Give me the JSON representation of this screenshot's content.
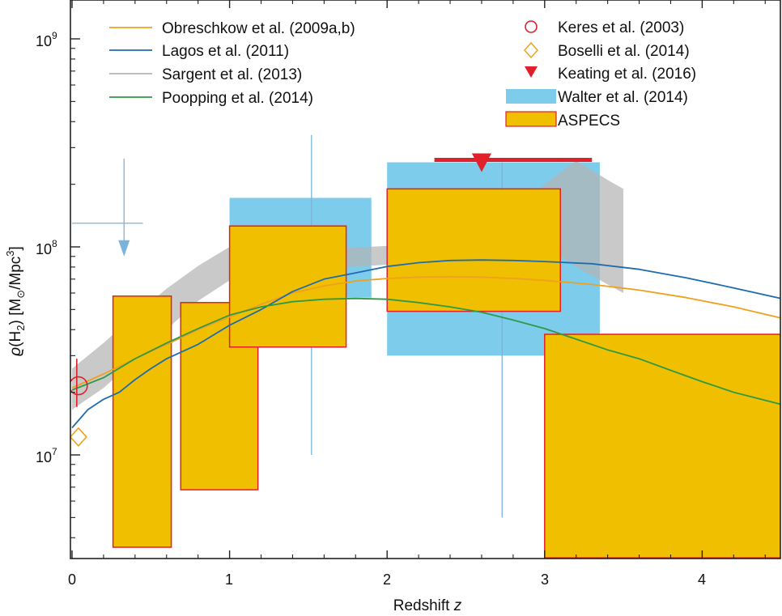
{
  "chart_data": {
    "type": "line",
    "title": "",
    "xlabel": "Redshift z",
    "xlabel_main": "Redshift ",
    "xlabel_var": "z",
    "ylabel": "ϱ(H₂) [M☉/Mpc³]",
    "ylabel_rho": "ϱ",
    "ylabel_open": "(H",
    "ylabel_sub": "2",
    "ylabel_mid": ") [M",
    "ylabel_sun": "⊙",
    "ylabel_unit": "/Mpc",
    "ylabel_exp": "3",
    "ylabel_close": "]",
    "xlim": [
      0,
      4.5
    ],
    "ylim": [
      3200000,
      1600000000
    ],
    "yscale": "log",
    "x_ticks": [
      {
        "value": 0,
        "label": "0"
      },
      {
        "value": 1,
        "label": "1"
      },
      {
        "value": 2,
        "label": "2"
      },
      {
        "value": 3,
        "label": "3"
      },
      {
        "value": 4,
        "label": "4"
      }
    ],
    "y_ticks": [
      {
        "value": 10000000,
        "base": "10",
        "exp": "7"
      },
      {
        "value": 100000000,
        "base": "10",
        "exp": "8"
      },
      {
        "value": 1000000000,
        "base": "10",
        "exp": "9"
      }
    ],
    "legend": {
      "obreschkow": "Obreschkow et al. (2009a,b)",
      "lagos": "Lagos et al. (2011)",
      "sargent": "Sargent et al. (2013)",
      "popping": "Poopping et al. (2014)",
      "keres": "Keres et al. (2003)",
      "boselli": "Boselli et al. (2014)",
      "keating": "Keating et al. (2016)",
      "walter": "Walter et al. (2014)",
      "aspecs": "ASPECS"
    },
    "series": [
      {
        "name": "Obreschkow et al. (2009a,b)",
        "color": "#F0A01E",
        "x": [
          0,
          0.2,
          0.4,
          0.6,
          0.8,
          1.0,
          1.2,
          1.4,
          1.6,
          1.8,
          2.0,
          2.2,
          2.4,
          2.6,
          2.8,
          3.0,
          3.3,
          3.6,
          3.9,
          4.2,
          4.5
        ],
        "y": [
          21000000,
          24500000,
          29000000,
          34000000,
          40000000,
          46000000,
          53000000,
          60000000,
          65000000,
          68500000,
          70500000,
          71500000,
          71800000,
          71500000,
          70500000,
          69000000,
          66000000,
          62000000,
          57000000,
          51500000,
          45500000
        ]
      },
      {
        "name": "Lagos et al. (2011)",
        "color": "#1F6BB0",
        "x": [
          0,
          0.1,
          0.2,
          0.3,
          0.4,
          0.5,
          0.6,
          0.8,
          1.0,
          1.2,
          1.4,
          1.6,
          1.8,
          2.0,
          2.2,
          2.4,
          2.6,
          2.8,
          3.0,
          3.3,
          3.6,
          3.9,
          4.2,
          4.5
        ],
        "y": [
          13500000,
          16500000,
          18500000,
          20000000,
          23000000,
          26000000,
          29000000,
          34000000,
          42000000,
          50000000,
          61000000,
          70000000,
          75000000,
          80500000,
          84000000,
          86000000,
          86500000,
          86000000,
          85000000,
          83000000,
          78000000,
          71000000,
          63500000,
          56500000
        ]
      },
      {
        "name": "Poopping et al. (2014)",
        "color": "#2E9A46",
        "x": [
          0,
          0.2,
          0.4,
          0.6,
          0.8,
          1.0,
          1.2,
          1.4,
          1.6,
          1.8,
          2.0,
          2.2,
          2.4,
          2.6,
          2.8,
          3.0,
          3.2,
          3.4,
          3.6,
          3.8,
          4.0,
          4.2,
          4.5
        ],
        "y": [
          20500000,
          23500000,
          29000000,
          34500000,
          40500000,
          47000000,
          51500000,
          54500000,
          56000000,
          56500000,
          56000000,
          54000000,
          51500000,
          48500000,
          44500000,
          40500000,
          36000000,
          32000000,
          29000000,
          25500000,
          22500000,
          20000000,
          17500000
        ]
      }
    ],
    "sargent_band": {
      "name": "Sargent et al. (2013)",
      "color": "#B4B4B4",
      "x": [
        0,
        0.2,
        0.4,
        0.6,
        0.8,
        1.0,
        1.3,
        1.6,
        2.0,
        2.4,
        2.8,
        3.0,
        3.2,
        3.4,
        3.5
      ],
      "low": [
        16500000,
        21000000,
        28500000,
        40000000,
        55000000,
        69000000,
        76000000,
        79000000,
        82000000,
        88000000,
        95000000,
        102000000,
        80000000,
        66000000,
        60000000
      ],
      "high": [
        26000000,
        34500000,
        47000000,
        63000000,
        81000000,
        100000000,
        99000000,
        98000000,
        101000000,
        112000000,
        150000000,
        200000000,
        260000000,
        210000000,
        190000000
      ]
    },
    "walter_boxes": {
      "name": "Walter et al. (2014)",
      "fill": "#7ECCEC",
      "line": "#7AB3DB",
      "boxes": [
        {
          "x0": 1.0,
          "x1": 1.9,
          "y0": 57000000,
          "y1": 172000000,
          "xc": 1.52,
          "err_lo": 10000000,
          "err_hi": 345000000
        },
        {
          "x0": 2.0,
          "x1": 3.35,
          "y0": 30000000,
          "y1": 255000000,
          "xc": 2.73,
          "err_lo": 5000000,
          "err_hi": 255000000
        }
      ],
      "upper_limit": {
        "x0": 0,
        "x1": 0.45,
        "xc": 0.33,
        "y": 130000000,
        "y_tip": 90000000
      }
    },
    "aspecs_boxes": {
      "name": "ASPECS",
      "fill": "#F0C000",
      "edge": "#E0202A",
      "boxes": [
        {
          "x0": 0.26,
          "x1": 0.63,
          "y0": 3600000,
          "y1": 58000000
        },
        {
          "x0": 0.69,
          "x1": 1.18,
          "y0": 6800000,
          "y1": 54000000
        },
        {
          "x0": 1.0,
          "x1": 1.74,
          "y0": 33000000,
          "y1": 126000000
        },
        {
          "x0": 2.0,
          "x1": 3.1,
          "y0": 49000000,
          "y1": 190000000
        },
        {
          "x0": 3.0,
          "x1": 4.5,
          "y0": 3200000,
          "y1": 38000000
        }
      ]
    },
    "keres": {
      "name": "Keres et al. (2003)",
      "color": "#E0202A",
      "x": 0.03,
      "y": 21500000,
      "err_lo": 17000000,
      "err_hi": 29000000
    },
    "boselli": {
      "name": "Boselli et al. (2014)",
      "color": "#F0A01E",
      "x": 0.03,
      "y": 12200000
    },
    "keating": {
      "name": "Keating et al. (2016)",
      "color": "#E0202A",
      "x0": 2.3,
      "x1": 3.3,
      "y": 262000000,
      "marker_x": 2.6
    }
  }
}
